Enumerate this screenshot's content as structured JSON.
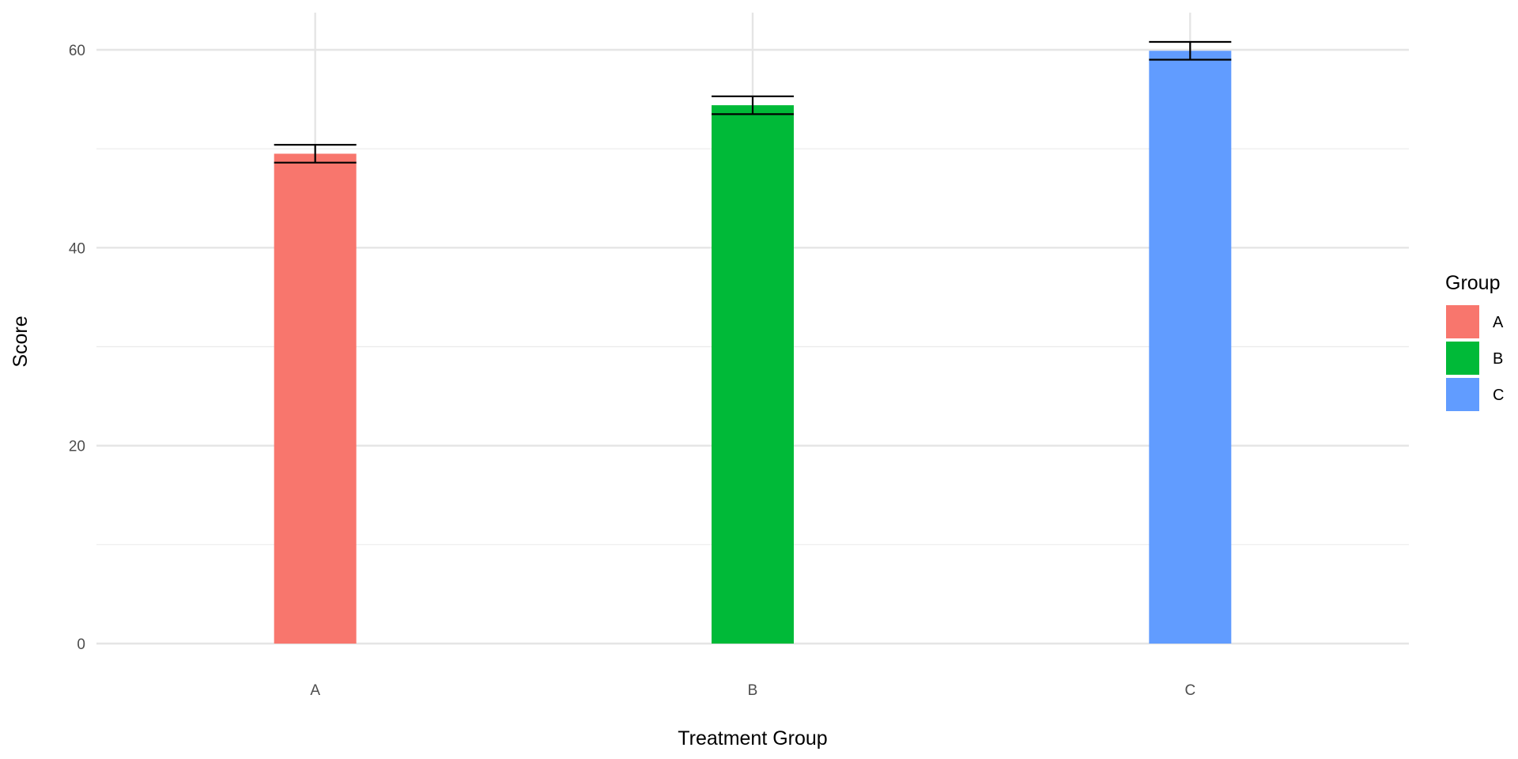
{
  "chart_data": {
    "type": "bar",
    "categories": [
      "A",
      "B",
      "C"
    ],
    "values": [
      49.5,
      54.4,
      59.9
    ],
    "error": [
      {
        "low": 48.6,
        "high": 50.4
      },
      {
        "low": 53.5,
        "high": 55.3
      },
      {
        "low": 59.0,
        "high": 60.8
      }
    ],
    "colors": [
      "#F8766D",
      "#00BA38",
      "#619CFF"
    ],
    "xlabel": "Treatment Group",
    "ylabel": "Score",
    "ylim": [
      0,
      60
    ],
    "yticks": [
      "0",
      "20",
      "40",
      "60"
    ],
    "grid": true,
    "legend": {
      "title": "Group",
      "position": "right",
      "items": [
        "A",
        "B",
        "C"
      ]
    }
  }
}
